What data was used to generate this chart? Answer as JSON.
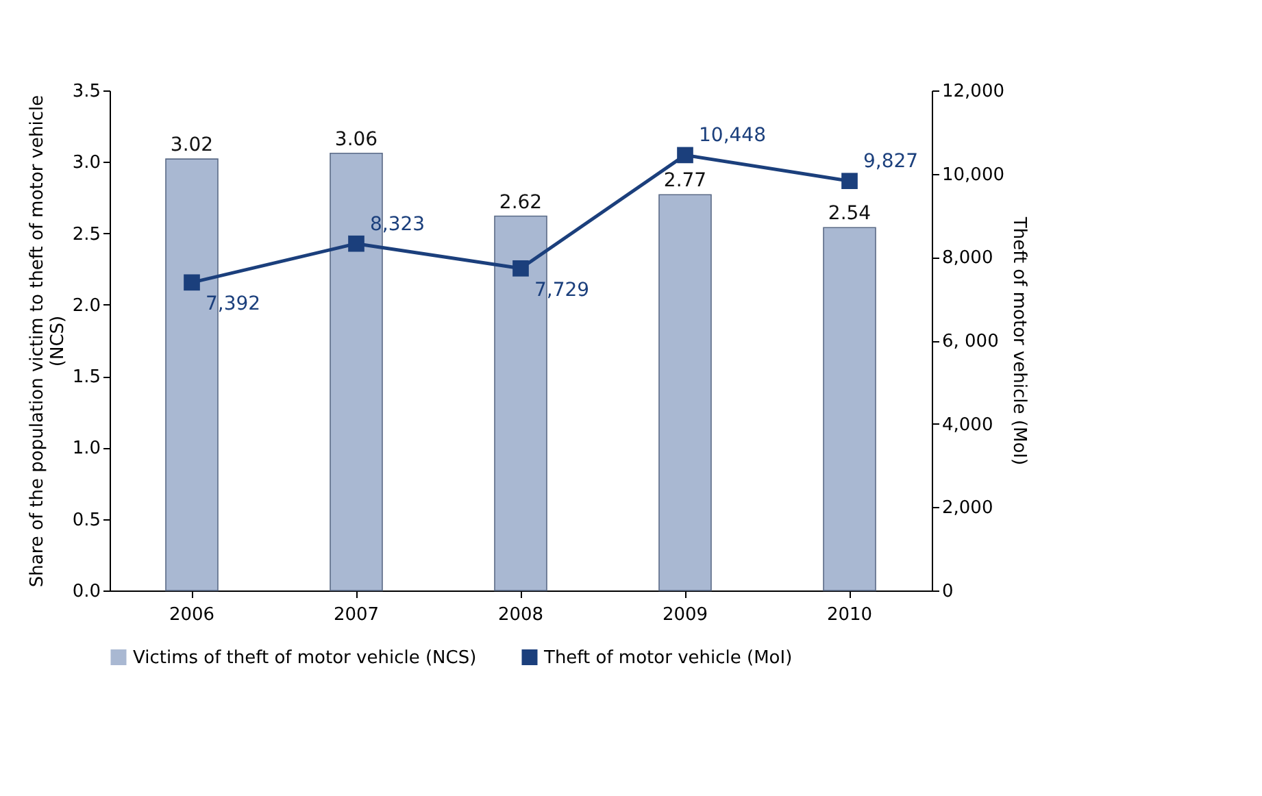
{
  "chart_data": {
    "type": "bar",
    "categories": [
      "2006",
      "2007",
      "2008",
      "2009",
      "2010"
    ],
    "series": [
      {
        "name": "Victims of theft of motor vehicle (NCS)",
        "color": "#a9b8d2",
        "values": [
          3.02,
          3.06,
          2.62,
          2.77,
          2.54
        ]
      },
      {
        "name": "Theft of motor vehicle (MoI)",
        "type": "line",
        "axis": "y2",
        "color": "#1b3f7c",
        "values": [
          7392,
          8323,
          7729,
          10448,
          9827
        ],
        "value_labels": [
          "7,392",
          "8,323",
          "7,729",
          "10,448",
          "9,827"
        ]
      }
    ],
    "ylabel": "Share of the population victim to theft of motor vehicle (NCS)",
    "y2label": "Theft of motor vehicle (MoI)",
    "ylim": [
      0,
      3.5
    ],
    "yticks": [
      {
        "value": 0,
        "label": "0.0"
      },
      0.5,
      {
        "value": 1,
        "label": "1.0"
      },
      1.5,
      {
        "value": 2,
        "label": "2.0"
      },
      2.5,
      {
        "value": 3,
        "label": "3.0"
      },
      3.5
    ],
    "y2lim": [
      0,
      12000
    ],
    "y2ticks": [
      0,
      {
        "value": 2000,
        "label": "2,000"
      },
      {
        "value": 4000,
        "label": "4,000"
      },
      {
        "value": 6000,
        "label": "6, 000"
      },
      {
        "value": 8000,
        "label": "8,000"
      },
      {
        "value": 10000,
        "label": "10,000"
      },
      {
        "value": 12000,
        "label": "12,000"
      }
    ],
    "marker": "square",
    "data_labels": true,
    "legend": "bottom"
  }
}
